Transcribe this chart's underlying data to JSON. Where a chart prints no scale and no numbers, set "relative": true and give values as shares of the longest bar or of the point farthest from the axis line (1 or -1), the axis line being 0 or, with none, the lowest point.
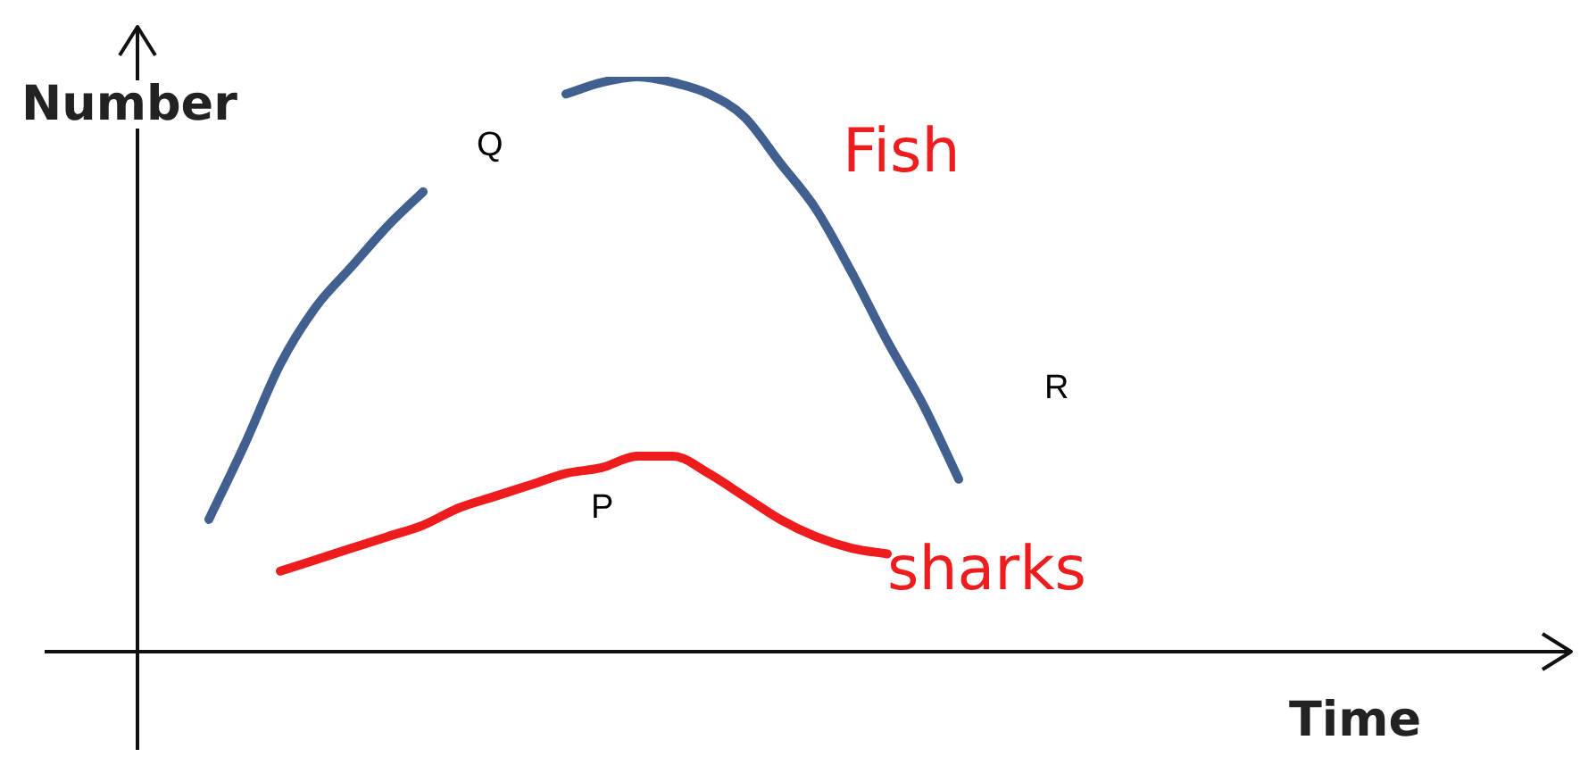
{
  "chart_data": {
    "type": "line",
    "relative": true,
    "xlabel": "Time",
    "ylabel": "Number",
    "legend": false,
    "grid": false,
    "marker": "none",
    "categories": [
      null,
      null,
      null,
      null,
      null,
      null,
      null,
      null,
      null,
      null,
      null,
      null,
      null,
      null,
      null,
      null,
      null,
      null,
      null,
      null,
      null,
      null,
      null,
      null,
      null,
      null,
      null,
      null,
      null,
      null,
      null,
      null,
      null,
      null,
      null,
      null,
      null,
      null,
      null,
      null,
      null
    ],
    "series": [
      {
        "name": "Fish",
        "color": "#41608f",
        "values": [
          null,
          null,
          0.23,
          0.36,
          0.5,
          0.6,
          0.67,
          0.74,
          0.8,
          null,
          null,
          null,
          0.97,
          0.99,
          1,
          0.99,
          0.97,
          0.93,
          0.85,
          0.77,
          0.66,
          0.54,
          0.43,
          0.3,
          null,
          null,
          null,
          null,
          null,
          null,
          null,
          null,
          null,
          null,
          null,
          null,
          null,
          null,
          null,
          null,
          null
        ]
      },
      {
        "name": "sharks",
        "color": "#ee1c1c",
        "values": [
          null,
          null,
          null,
          null,
          0.14,
          0.16,
          0.18,
          0.2,
          0.22,
          0.25,
          0.27,
          0.29,
          0.31,
          0.32,
          0.34,
          0.34,
          0.31,
          0.27,
          0.23,
          0.2,
          0.18,
          0.17,
          null,
          null,
          null,
          null,
          null,
          null,
          null,
          null,
          null,
          null,
          null,
          null,
          null,
          null,
          null,
          null,
          null,
          null,
          null
        ]
      }
    ],
    "annotations": [
      "Q",
      "P",
      "R"
    ]
  }
}
